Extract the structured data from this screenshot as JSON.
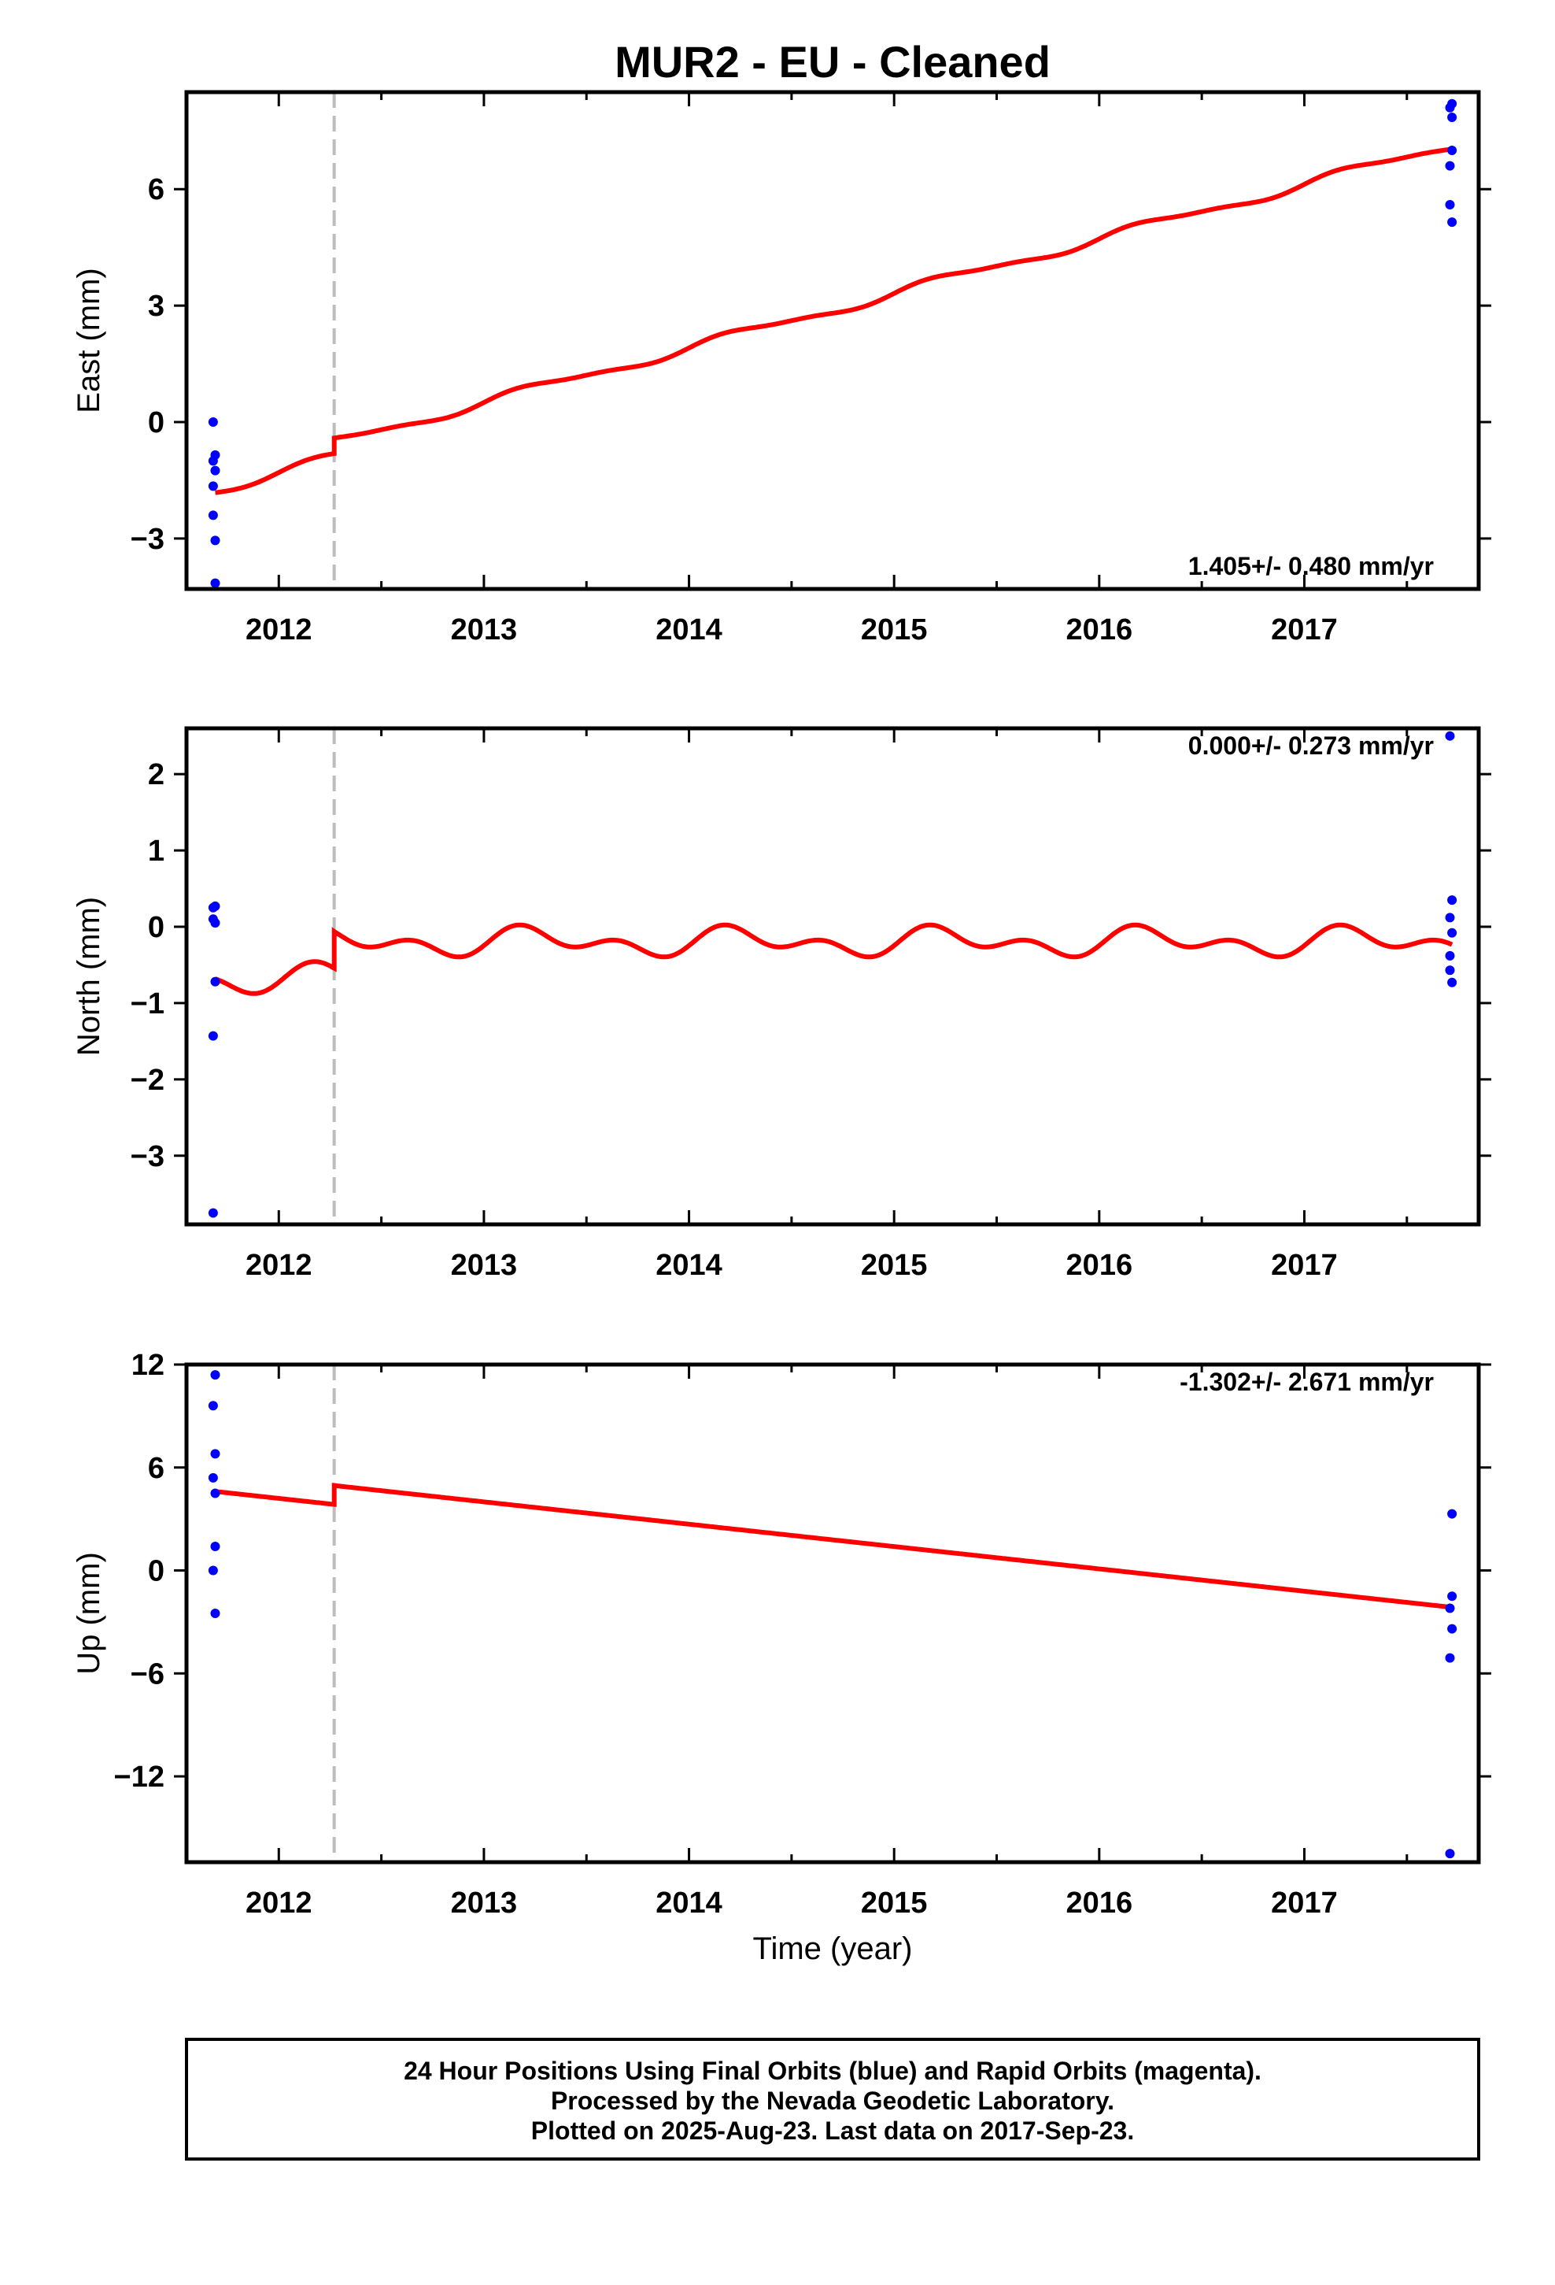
{
  "title": "MUR2  - EU - Cleaned",
  "colors": {
    "fit": "#ff0000",
    "final_points": "#0000ff",
    "break_line": "#bdbdbd",
    "frame": "#000000"
  },
  "x_axis": {
    "label": "Time (year)",
    "range": [
      2011.55,
      2017.85
    ],
    "ticks": [
      2012,
      2013,
      2014,
      2015,
      2016,
      2017
    ]
  },
  "break_epoch": 2012.27,
  "chart_data": [
    {
      "type": "scatter",
      "name": "east",
      "ylabel": "East (mm)",
      "ylim": [
        -4.3,
        8.5
      ],
      "yticks": [
        -3,
        0,
        3,
        6
      ],
      "ytick_labels": [
        "−3",
        "0",
        "3",
        "6"
      ],
      "rate_text": "1.405+/- 0.480 mm/yr",
      "rate_position": "bottom-right",
      "points": [
        [
          2011.68,
          0.0
        ],
        [
          2011.69,
          -0.85
        ],
        [
          2011.68,
          -1.0
        ],
        [
          2011.69,
          -1.25
        ],
        [
          2011.68,
          -1.65
        ],
        [
          2011.68,
          -2.4
        ],
        [
          2011.69,
          -3.05
        ],
        [
          2011.69,
          -4.15
        ],
        [
          2017.71,
          8.1
        ],
        [
          2017.72,
          8.2
        ],
        [
          2017.72,
          7.85
        ],
        [
          2017.72,
          7.0
        ],
        [
          2017.71,
          6.6
        ],
        [
          2017.71,
          5.6
        ],
        [
          2017.72,
          5.15
        ]
      ],
      "fit": {
        "rate": 1.405,
        "intercept_2012": -1.3,
        "step": 0.4,
        "amp_annual": 0.12,
        "amp_semi": 0.04,
        "phase_annual": 0.0,
        "phase_semi": 0.0
      }
    },
    {
      "type": "scatter",
      "name": "north",
      "ylabel": "North (mm)",
      "ylim": [
        -3.9,
        2.6
      ],
      "yticks": [
        -3,
        -2,
        -1,
        0,
        1,
        2
      ],
      "ytick_labels": [
        "−3",
        "−2",
        "−1",
        "0",
        "1",
        "2"
      ],
      "rate_text": "0.000+/- 0.273 mm/yr",
      "rate_position": "top-right",
      "points": [
        [
          2011.68,
          0.25
        ],
        [
          2011.69,
          0.27
        ],
        [
          2011.68,
          0.1
        ],
        [
          2011.69,
          0.05
        ],
        [
          2011.69,
          -0.72
        ],
        [
          2011.68,
          -1.43
        ],
        [
          2011.68,
          -3.75
        ],
        [
          2017.71,
          2.5
        ],
        [
          2017.72,
          0.35
        ],
        [
          2017.71,
          0.12
        ],
        [
          2017.72,
          -0.08
        ],
        [
          2017.71,
          -0.38
        ],
        [
          2017.71,
          -0.57
        ],
        [
          2017.72,
          -0.73
        ]
      ],
      "fit": {
        "rate": 0.0,
        "intercept_2012": -0.68,
        "step": 0.48,
        "amp_annual": 0.12,
        "amp_semi": 0.12,
        "phase_annual": 0.0,
        "phase_semi": -0.4
      }
    },
    {
      "type": "scatter",
      "name": "up",
      "ylabel": "Up (mm)",
      "ylim": [
        -17,
        12
      ],
      "yticks": [
        -12,
        -6,
        0,
        6,
        12
      ],
      "ytick_labels": [
        "−12",
        "−6",
        "0",
        "6",
        "12"
      ],
      "rate_text": "-1.302+/- 2.671 mm/yr",
      "rate_position": "top-right",
      "points": [
        [
          2011.69,
          11.4
        ],
        [
          2011.68,
          9.6
        ],
        [
          2011.69,
          6.8
        ],
        [
          2011.68,
          5.4
        ],
        [
          2011.69,
          4.5
        ],
        [
          2011.69,
          1.4
        ],
        [
          2011.68,
          0.0
        ],
        [
          2011.69,
          -2.5
        ],
        [
          2017.72,
          3.3
        ],
        [
          2017.72,
          -1.5
        ],
        [
          2017.71,
          -2.2
        ],
        [
          2017.72,
          -3.4
        ],
        [
          2017.71,
          -5.1
        ],
        [
          2017.71,
          -16.5
        ]
      ],
      "fit": {
        "rate": -1.302,
        "intercept_2012": 4.2,
        "step": 1.1,
        "amp_annual": 0.0,
        "amp_semi": 0.0,
        "phase_annual": 0.0,
        "phase_semi": 0.0
      }
    }
  ],
  "footer": {
    "lines": [
      "24 Hour Positions Using Final Orbits (blue) and Rapid Orbits (magenta).",
      "Processed by the Nevada Geodetic Laboratory.",
      "Plotted on 2025-Aug-23. Last data on 2017-Sep-23."
    ]
  }
}
